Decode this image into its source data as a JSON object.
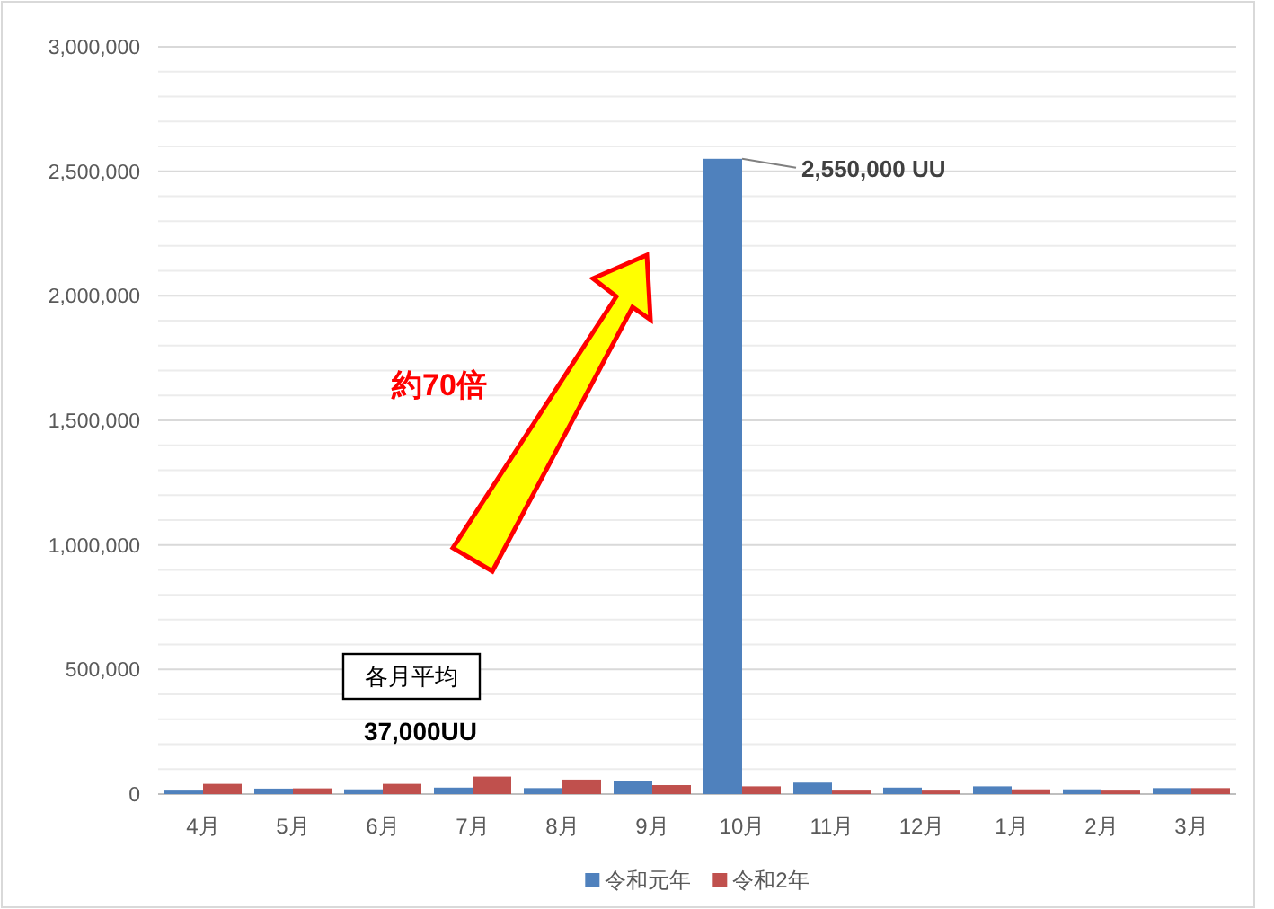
{
  "chart_data": {
    "type": "bar",
    "categories": [
      "4月",
      "5月",
      "6月",
      "7月",
      "8月",
      "9月",
      "10月",
      "11月",
      "12月",
      "1月",
      "2月",
      "3月"
    ],
    "series": [
      {
        "name": "令和元年",
        "color": "#4f81bd",
        "values": [
          14000,
          22000,
          19000,
          26000,
          24000,
          53000,
          2550000,
          46000,
          26000,
          31000,
          19000,
          24000
        ]
      },
      {
        "name": "令和2年",
        "color": "#c0504d",
        "values": [
          41000,
          23000,
          41000,
          70000,
          58000,
          36000,
          31000,
          14000,
          14000,
          19000,
          14000,
          24000
        ]
      }
    ],
    "ylim": [
      0,
      3000000
    ],
    "yticks": [
      0,
      {
        "value": 100000,
        "label": null
      },
      {
        "value": 200000,
        "label": null
      },
      {
        "value": 300000,
        "label": null
      },
      {
        "value": 400000,
        "label": null
      },
      {
        "value": 500000,
        "label": "500,000"
      },
      {
        "value": 600000,
        "label": null
      },
      {
        "value": 700000,
        "label": null
      },
      {
        "value": 800000,
        "label": null
      },
      {
        "value": 900000,
        "label": null
      },
      {
        "value": 1000000,
        "label": "1,000,000"
      },
      {
        "value": 1100000,
        "label": null
      },
      {
        "value": 1200000,
        "label": null
      },
      {
        "value": 1300000,
        "label": null
      },
      {
        "value": 1400000,
        "label": null
      },
      {
        "value": 1500000,
        "label": "1,500,000"
      },
      {
        "value": 1600000,
        "label": null
      },
      {
        "value": 1700000,
        "label": null
      },
      {
        "value": 1800000,
        "label": null
      },
      {
        "value": 1900000,
        "label": null
      },
      {
        "value": 2000000,
        "label": "2,000,000"
      },
      {
        "value": 2100000,
        "label": null
      },
      {
        "value": 2200000,
        "label": null
      },
      {
        "value": 2300000,
        "label": null
      },
      {
        "value": 2400000,
        "label": null
      },
      {
        "value": 2500000,
        "label": "2,500,000"
      },
      {
        "value": 2600000,
        "label": null
      },
      {
        "value": 2700000,
        "label": null
      },
      {
        "value": 2800000,
        "label": null
      },
      {
        "value": 2900000,
        "label": null
      },
      {
        "value": 3000000,
        "label": "3,000,000"
      }
    ],
    "grid": "y",
    "legend": "bottom",
    "annotations": [
      {
        "text": "2,550,000 UU",
        "x": "10月",
        "y": 2550000
      },
      "約70倍",
      "各月平均",
      "37,000UU"
    ]
  }
}
